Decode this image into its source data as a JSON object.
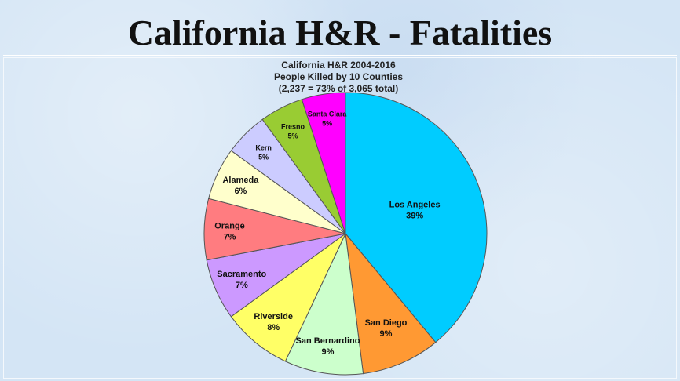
{
  "slide": {
    "title": "California H&R - Fatalities"
  },
  "chart_data": {
    "type": "pie",
    "title": "California H&R 2004-2016",
    "subtitle_lines": [
      "People Killed by 10 Counties",
      "(2,237 = 73% of 3,065 total)"
    ],
    "start_angle_deg": 0,
    "direction": "clockwise",
    "slices": [
      {
        "label": "Los Angeles",
        "pct_label": "39%",
        "value": 39,
        "color": "#00ccff"
      },
      {
        "label": "San Diego",
        "pct_label": "9%",
        "value": 9,
        "color": "#ff9933"
      },
      {
        "label": "San Bernardino",
        "pct_label": "9%",
        "value": 9,
        "color": "#ccffcc"
      },
      {
        "label": "Riverside",
        "pct_label": "8%",
        "value": 8,
        "color": "#ffff66"
      },
      {
        "label": "Sacramento",
        "pct_label": "7%",
        "value": 7,
        "color": "#cc99ff"
      },
      {
        "label": "Orange",
        "pct_label": "7%",
        "value": 7,
        "color": "#ff7c80"
      },
      {
        "label": "Alameda",
        "pct_label": "6%",
        "value": 6,
        "color": "#ffffcc"
      },
      {
        "label": "Kern",
        "pct_label": "5%",
        "value": 5,
        "color": "#ccccff"
      },
      {
        "label": "Fresno",
        "pct_label": "5%",
        "value": 5,
        "color": "#99cc33"
      },
      {
        "label": "Santa Clara",
        "pct_label": "5%",
        "value": 5,
        "color": "#ff00ff"
      }
    ]
  }
}
